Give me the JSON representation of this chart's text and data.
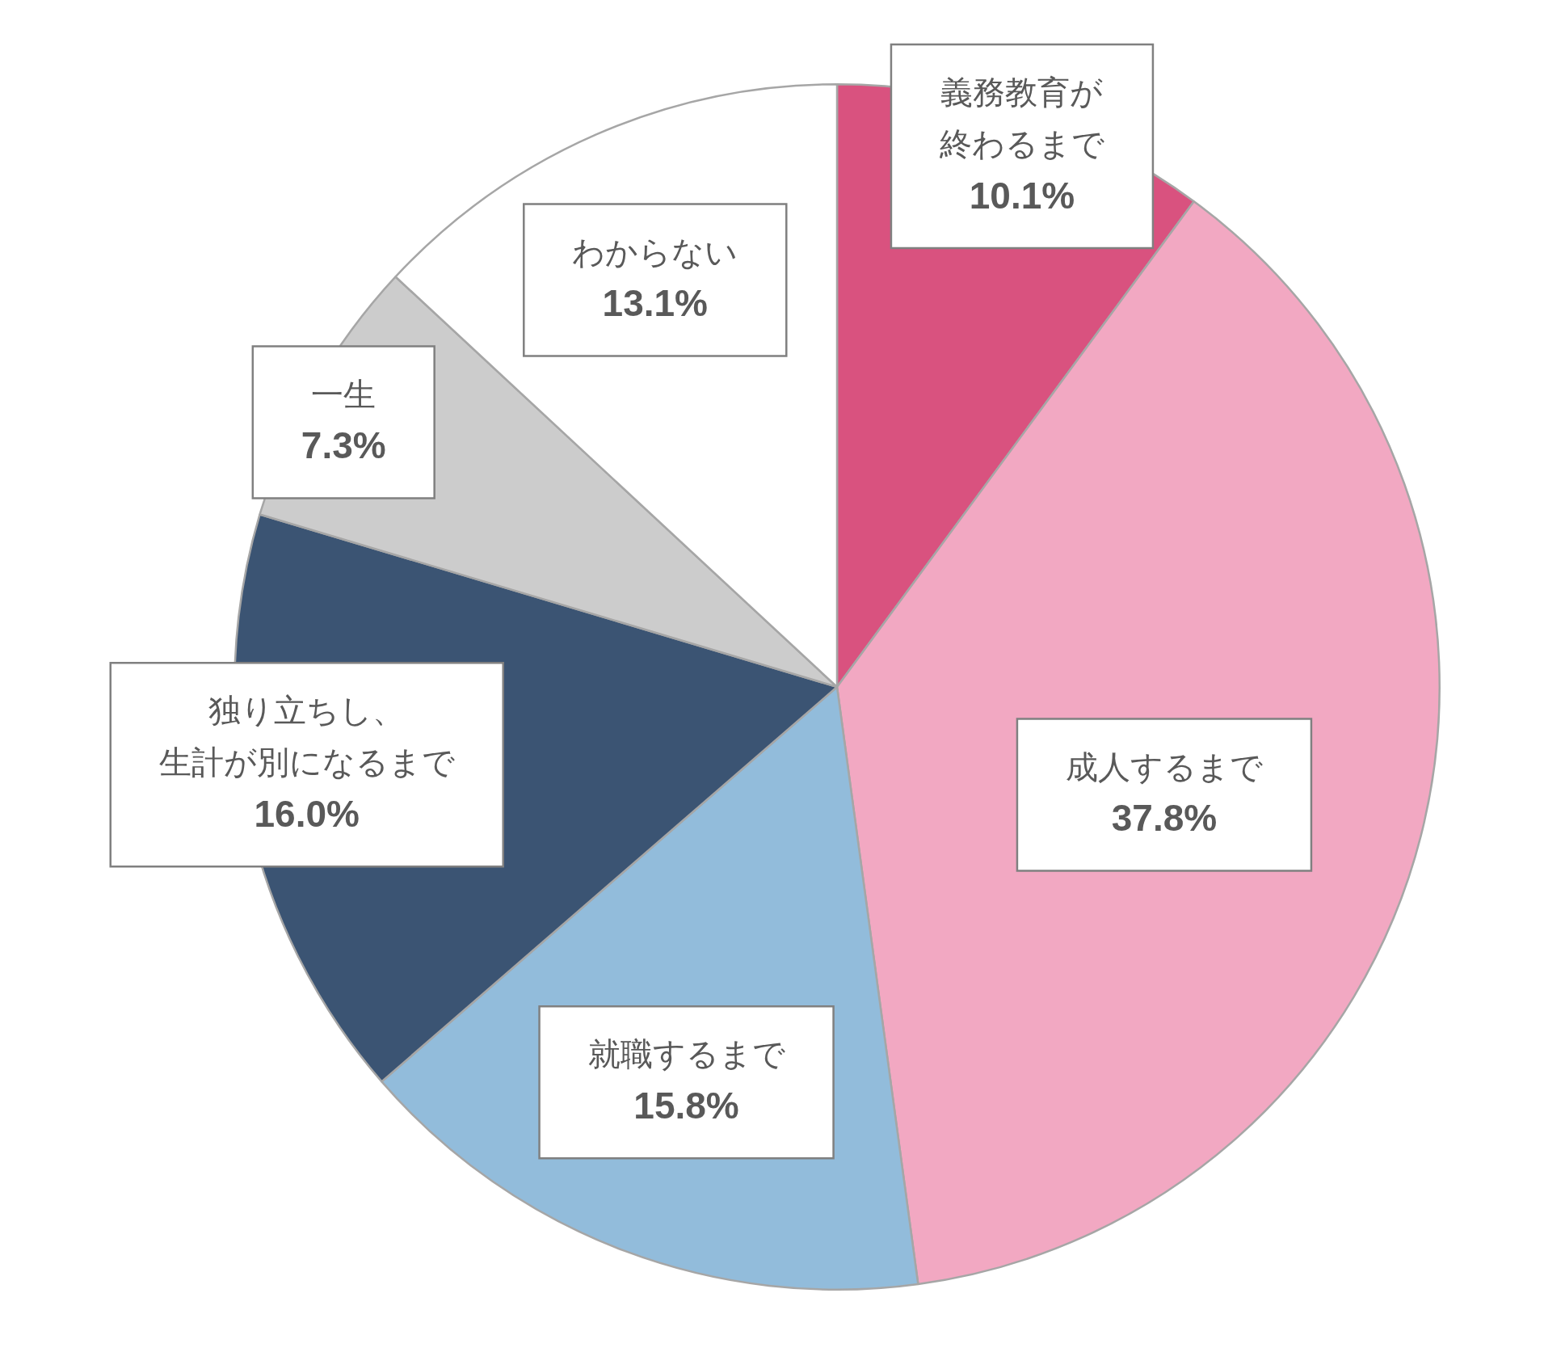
{
  "chart_data": {
    "type": "pie",
    "categories": [
      "義務教育が終わるまで",
      "成人するまで",
      "就職するまで",
      "独り立ちし、生計が別になるまで",
      "一生",
      "わからない"
    ],
    "values": [
      10.1,
      37.8,
      15.8,
      16.0,
      7.3,
      13.1
    ],
    "value_labels": [
      "10.1%",
      "37.8%",
      "15.8%",
      "16.0%",
      "7.3%",
      "13.1%"
    ],
    "colors": [
      "#d9527f",
      "#f2a8c2",
      "#92bcdb",
      "#3b5473",
      "#cccccc",
      "#ffffff"
    ],
    "legend": false
  }
}
